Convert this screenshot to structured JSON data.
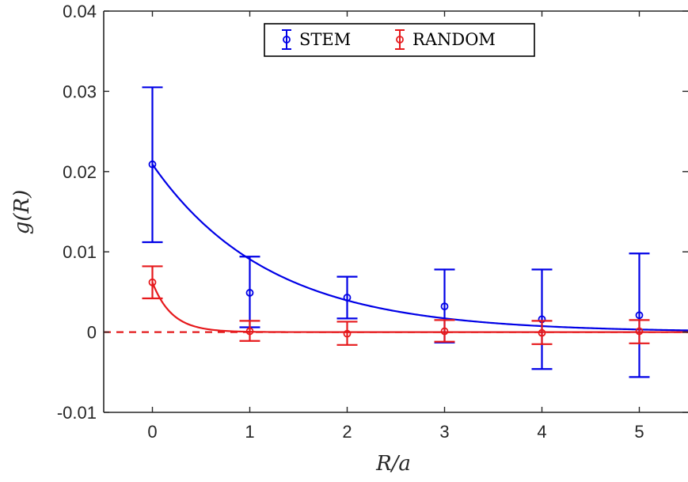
{
  "chart_data": {
    "type": "scatter",
    "xlabel": "R/a",
    "ylabel": "g(R)",
    "xlim": [
      -0.5,
      5.5
    ],
    "ylim": [
      -0.01,
      0.04
    ],
    "x_ticks": [
      0,
      1,
      2,
      3,
      4,
      5
    ],
    "x_tick_labels": [
      "0",
      "1",
      "2",
      "3",
      "4",
      "5"
    ],
    "y_ticks": [
      -0.01,
      0,
      0.01,
      0.02,
      0.03,
      0.04
    ],
    "y_tick_labels": [
      "-0.01",
      "0",
      "0.01",
      "0.02",
      "0.03",
      "0.04"
    ],
    "grid": false,
    "legend_position": "top-center",
    "reference_line": {
      "y": 0,
      "style": "dashed",
      "color": "#e41a1c"
    },
    "series": [
      {
        "name": "STEM",
        "color": "#0000e6",
        "x": [
          0,
          1,
          2,
          3,
          4,
          5
        ],
        "y": [
          0.0209,
          0.0049,
          0.0043,
          0.0032,
          0.0016,
          0.0021
        ],
        "y_lower": [
          0.0112,
          0.0006,
          0.0017,
          -0.0013,
          -0.0046,
          -0.0056
        ],
        "y_upper": [
          0.0305,
          0.0094,
          0.0069,
          0.0078,
          0.0078,
          0.0098
        ],
        "fit": {
          "form": "exponential",
          "amplitude": 0.0209,
          "decay_length": 1.2
        }
      },
      {
        "name": "RANDOM",
        "color": "#e6191c",
        "x": [
          0,
          1,
          2,
          3,
          4,
          5
        ],
        "y": [
          0.0062,
          0.0001,
          -0.0002,
          0.0001,
          -0.0001,
          0.0001
        ],
        "y_lower": [
          0.0042,
          -0.0011,
          -0.0016,
          -0.0012,
          -0.0015,
          -0.0014
        ],
        "y_upper": [
          0.0082,
          0.0014,
          0.0013,
          0.0015,
          0.0014,
          0.0015
        ],
        "fit": {
          "form": "exponential",
          "amplitude": 0.0062,
          "decay_length": 0.2
        }
      }
    ]
  }
}
